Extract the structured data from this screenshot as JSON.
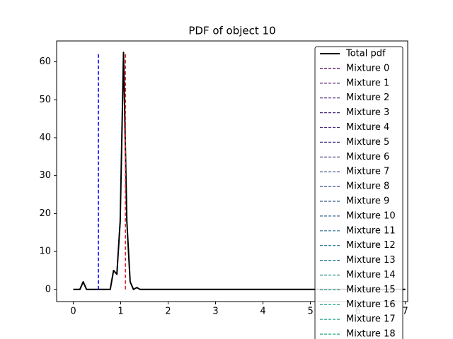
{
  "chart_data": {
    "type": "line",
    "title": "PDF of object 10",
    "xlim": [
      -0.35,
      7.05
    ],
    "xticks": [
      0,
      1,
      2,
      3,
      4,
      5,
      6,
      7
    ],
    "ylim": [
      -3.2,
      65.5
    ],
    "yticks": [
      0,
      10,
      20,
      30,
      40,
      50,
      60
    ],
    "series": [
      {
        "name": "Total pdf",
        "color": "#000000",
        "linestyle": "solid",
        "x": [
          0,
          0.14,
          0.21,
          0.28,
          0.35,
          0.78,
          0.85,
          0.92,
          0.99,
          1.06,
          1.13,
          1.2,
          1.27,
          1.34,
          1.41,
          7.0
        ],
        "values": [
          0,
          0,
          2,
          0,
          0,
          0,
          5,
          4,
          18,
          62.5,
          18,
          2,
          0,
          0.5,
          0,
          0
        ]
      },
      {
        "name": "Mixture 0",
        "color": "#440154",
        "linestyle": "dashed"
      },
      {
        "name": "Mixture 1",
        "color": "#471063",
        "linestyle": "dashed"
      },
      {
        "name": "Mixture 2",
        "color": "#481b6d",
        "linestyle": "dashed"
      },
      {
        "name": "Mixture 3",
        "color": "#482576",
        "linestyle": "dashed"
      },
      {
        "name": "Mixture 4",
        "color": "#472e7c",
        "linestyle": "dashed"
      },
      {
        "name": "Mixture 5",
        "color": "#453781",
        "linestyle": "dashed"
      },
      {
        "name": "Mixture 6",
        "color": "#424086",
        "linestyle": "dashed"
      },
      {
        "name": "Mixture 7",
        "color": "#3e4989",
        "linestyle": "dashed"
      },
      {
        "name": "Mixture 8",
        "color": "#3b528b",
        "linestyle": "dashed"
      },
      {
        "name": "Mixture 9",
        "color": "#375b8d",
        "linestyle": "dashed"
      },
      {
        "name": "Mixture 10",
        "color": "#33638d",
        "linestyle": "dashed"
      },
      {
        "name": "Mixture 11",
        "color": "#2f6c8e",
        "linestyle": "dashed"
      },
      {
        "name": "Mixture 12",
        "color": "#2c738e",
        "linestyle": "dashed"
      },
      {
        "name": "Mixture 13",
        "color": "#287c8e",
        "linestyle": "dashed"
      },
      {
        "name": "Mixture 14",
        "color": "#228c8d",
        "linestyle": "dashed"
      },
      {
        "name": "Mixture 15",
        "color": "#20928c",
        "linestyle": "dashed"
      },
      {
        "name": "Mixture 16",
        "color": "#1e9c89",
        "linestyle": "dashed"
      },
      {
        "name": "Mixture 17",
        "color": "#20a386",
        "linestyle": "dashed"
      },
      {
        "name": "Mixture 18",
        "color": "#26ad81",
        "linestyle": "dashed"
      }
    ],
    "vlines": [
      {
        "x": 0.53,
        "ymin": 0,
        "ymax": 62.5,
        "color": "#0000ff"
      },
      {
        "x": 1.1,
        "ymin": 0,
        "ymax": 62.5,
        "color": "#d62728"
      }
    ],
    "legend": "upper right"
  }
}
